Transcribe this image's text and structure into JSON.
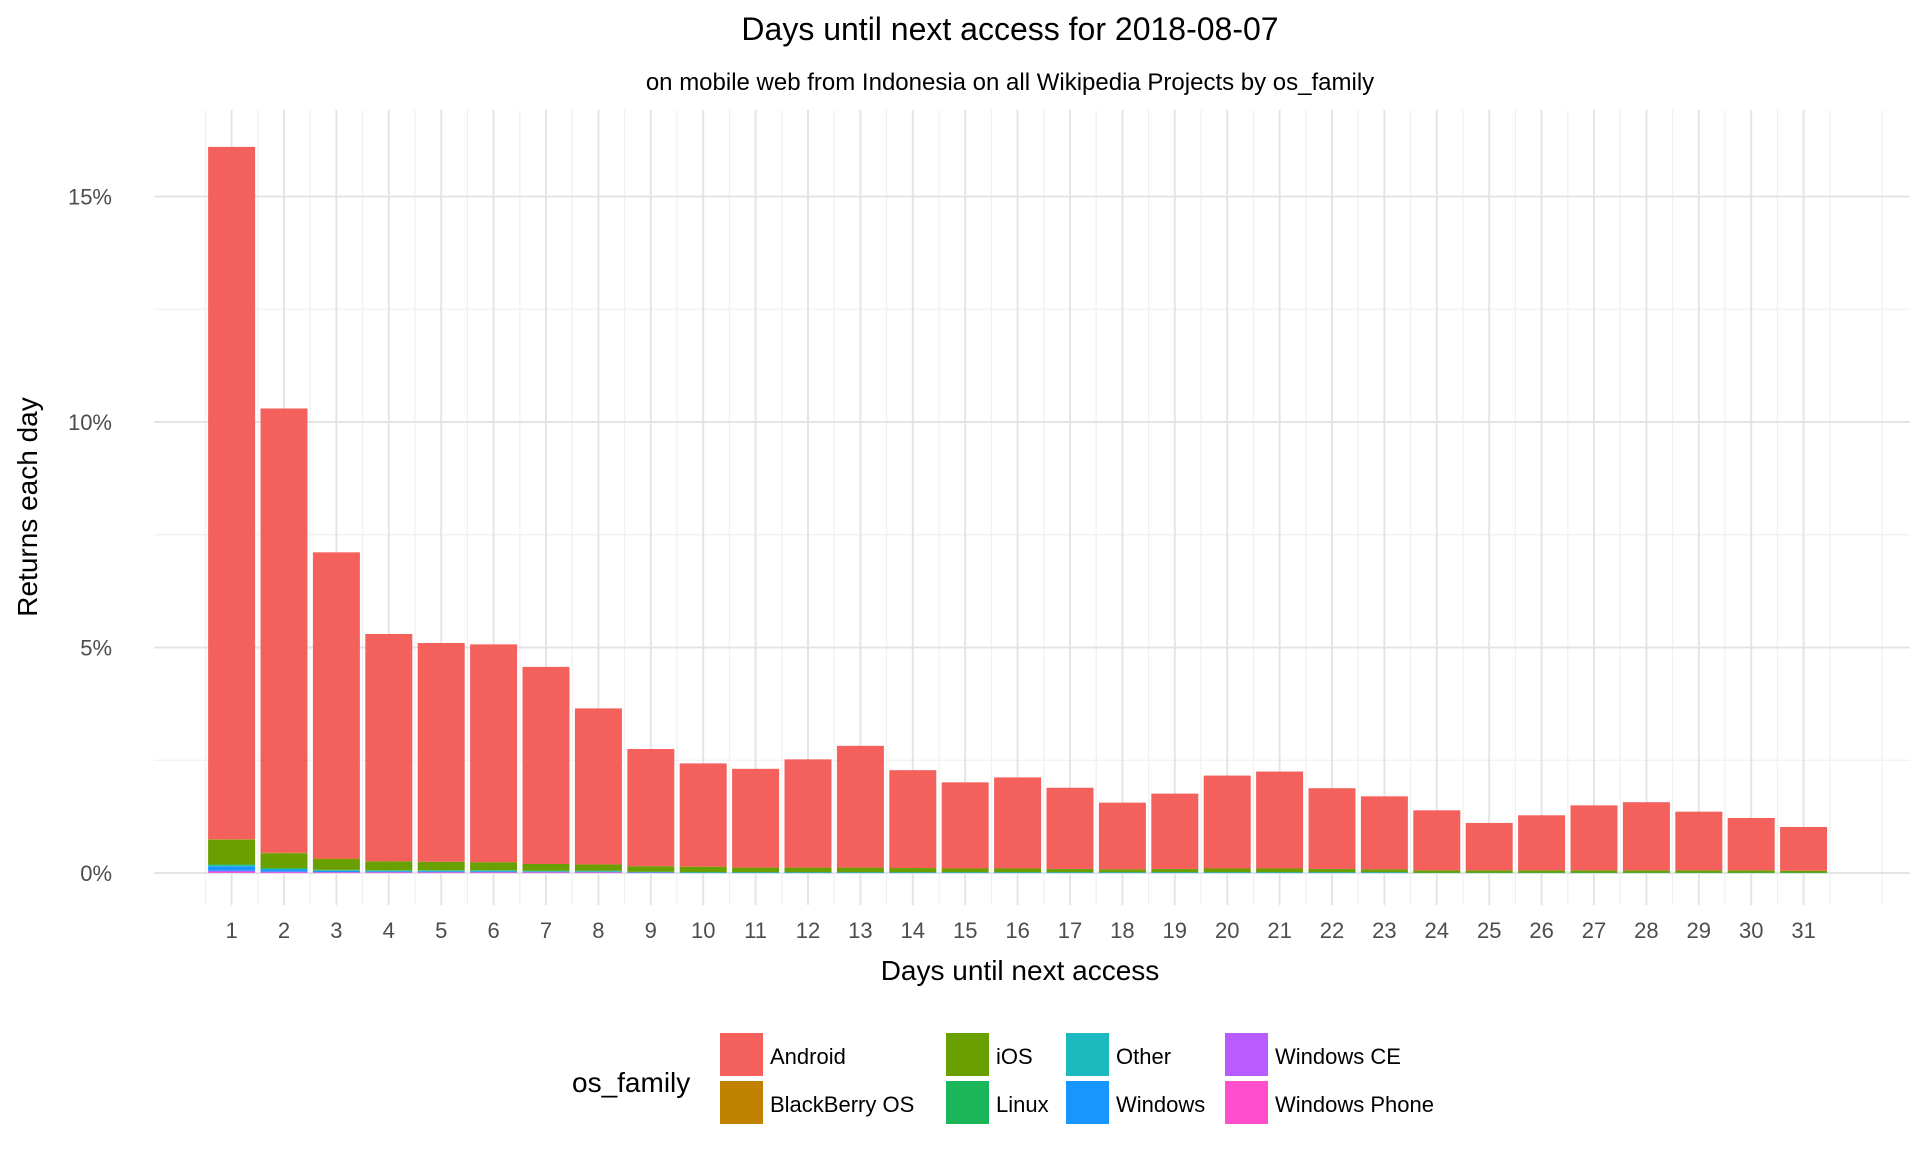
{
  "chart_data": {
    "type": "bar",
    "stacked": true,
    "title": "Days until next access for 2018-08-07",
    "subtitle": "on mobile web from Indonesia on all Wikipedia Projects by os_family",
    "xlabel": "Days until next access",
    "ylabel": "Returns each day",
    "ylim": [
      0,
      16.5
    ],
    "y_ticks": [
      0,
      5,
      10,
      15
    ],
    "y_tick_labels": [
      "0%",
      "5%",
      "10%",
      "15%"
    ],
    "legend_title": "os_family",
    "legend_position": "bottom",
    "categories": [
      "1",
      "2",
      "3",
      "4",
      "5",
      "6",
      "7",
      "8",
      "9",
      "10",
      "11",
      "12",
      "13",
      "14",
      "15",
      "16",
      "17",
      "18",
      "19",
      "20",
      "21",
      "22",
      "23",
      "24",
      "25",
      "26",
      "27",
      "28",
      "29",
      "30",
      "31"
    ],
    "series": [
      {
        "name": "Windows Phone",
        "color": "#FF4FCC",
        "values": [
          0.02,
          0.01,
          0.01,
          0.01,
          0.01,
          0.01,
          0.01,
          0.01,
          0,
          0,
          0,
          0,
          0,
          0,
          0,
          0,
          0,
          0,
          0,
          0,
          0,
          0,
          0,
          0,
          0,
          0,
          0,
          0,
          0,
          0,
          0
        ]
      },
      {
        "name": "Windows CE",
        "color": "#B85CFF",
        "values": [
          0.03,
          0.02,
          0.01,
          0.01,
          0.01,
          0.01,
          0.01,
          0.01,
          0.01,
          0,
          0,
          0,
          0,
          0,
          0,
          0,
          0,
          0,
          0,
          0,
          0,
          0,
          0,
          0,
          0,
          0,
          0,
          0,
          0,
          0,
          0
        ]
      },
      {
        "name": "Windows",
        "color": "#1796FF",
        "values": [
          0.1,
          0.05,
          0.03,
          0.02,
          0.02,
          0.02,
          0.01,
          0.01,
          0.01,
          0.01,
          0.01,
          0.01,
          0.01,
          0.01,
          0.01,
          0.01,
          0.01,
          0.01,
          0.01,
          0.01,
          0.01,
          0.01,
          0.01,
          0,
          0,
          0,
          0,
          0,
          0,
          0,
          0
        ]
      },
      {
        "name": "Other",
        "color": "#1CB9BE",
        "values": [
          0.02,
          0.01,
          0.01,
          0.01,
          0.01,
          0.01,
          0.01,
          0.01,
          0,
          0,
          0,
          0,
          0,
          0,
          0,
          0,
          0,
          0,
          0,
          0,
          0,
          0,
          0,
          0,
          0,
          0,
          0,
          0,
          0,
          0,
          0
        ]
      },
      {
        "name": "Linux",
        "color": "#1CB65A",
        "values": [
          0.02,
          0.02,
          0.01,
          0.01,
          0.01,
          0.01,
          0.01,
          0.01,
          0.01,
          0.01,
          0.01,
          0.01,
          0.01,
          0.01,
          0.01,
          0.01,
          0.01,
          0.01,
          0.01,
          0.01,
          0.01,
          0.01,
          0.01,
          0.01,
          0.01,
          0.01,
          0.01,
          0.01,
          0.01,
          0.01,
          0.01
        ]
      },
      {
        "name": "iOS",
        "color": "#6A9F00",
        "values": [
          0.55,
          0.33,
          0.24,
          0.2,
          0.19,
          0.18,
          0.15,
          0.14,
          0.12,
          0.12,
          0.1,
          0.1,
          0.1,
          0.09,
          0.08,
          0.08,
          0.07,
          0.06,
          0.07,
          0.08,
          0.08,
          0.07,
          0.06,
          0.05,
          0.05,
          0.05,
          0.05,
          0.05,
          0.05,
          0.05,
          0.04
        ]
      },
      {
        "name": "BlackBerry OS",
        "color": "#C08000",
        "values": [
          0.01,
          0.01,
          0.01,
          0,
          0,
          0,
          0,
          0,
          0,
          0,
          0,
          0,
          0,
          0,
          0,
          0,
          0,
          0,
          0,
          0,
          0,
          0,
          0,
          0,
          0,
          0,
          0,
          0,
          0,
          0,
          0
        ]
      },
      {
        "name": "Android",
        "color": "#F4615C",
        "values": [
          15.35,
          9.85,
          6.79,
          5.04,
          4.85,
          4.83,
          4.37,
          3.46,
          2.6,
          2.29,
          2.19,
          2.4,
          2.7,
          2.17,
          1.91,
          2.02,
          1.8,
          1.48,
          1.67,
          2.06,
          2.15,
          1.79,
          1.62,
          1.33,
          1.05,
          1.22,
          1.44,
          1.51,
          1.3,
          1.16,
          0.97
        ]
      }
    ],
    "legend_order": [
      "Android",
      "BlackBerry OS",
      "iOS",
      "Linux",
      "Other",
      "Windows",
      "Windows CE",
      "Windows Phone"
    ]
  }
}
